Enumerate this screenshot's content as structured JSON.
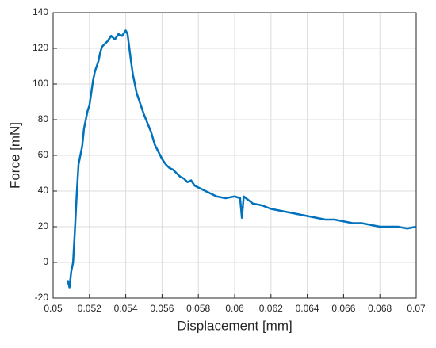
{
  "chart_data": {
    "type": "line",
    "xlabel": "Displacement [mm]",
    "ylabel": "Force [mN]",
    "x": [
      0.0508,
      0.0509,
      0.051,
      0.0511,
      0.0512,
      0.0513,
      0.0514,
      0.0515,
      0.0516,
      0.0517,
      0.0518,
      0.0519,
      0.052,
      0.0521,
      0.0522,
      0.0523,
      0.0524,
      0.0525,
      0.0526,
      0.0527,
      0.0528,
      0.0529,
      0.053,
      0.0532,
      0.0534,
      0.0536,
      0.0538,
      0.054,
      0.0541,
      0.0542,
      0.0543,
      0.0544,
      0.0546,
      0.0548,
      0.055,
      0.0552,
      0.0554,
      0.0556,
      0.0558,
      0.056,
      0.0562,
      0.0564,
      0.0566,
      0.0568,
      0.057,
      0.0572,
      0.0574,
      0.0576,
      0.0578,
      0.058,
      0.0582,
      0.0584,
      0.0586,
      0.0588,
      0.059,
      0.0595,
      0.06,
      0.0603,
      0.0604,
      0.0605,
      0.061,
      0.0615,
      0.062,
      0.0625,
      0.063,
      0.0635,
      0.064,
      0.0645,
      0.065,
      0.0655,
      0.066,
      0.0665,
      0.067,
      0.0675,
      0.068,
      0.0685,
      0.069,
      0.0695,
      0.07
    ],
    "series": [
      {
        "name": "Force",
        "color": "#0072bd",
        "values": [
          -10,
          -14,
          -5,
          0,
          18,
          38,
          55,
          60,
          65,
          75,
          80,
          85,
          88,
          95,
          102,
          107,
          110,
          113,
          118,
          121,
          122,
          123,
          124,
          127,
          125,
          128,
          127,
          130,
          128,
          120,
          112,
          105,
          95,
          89,
          83,
          78,
          73,
          66,
          62,
          58,
          55,
          53,
          52,
          50,
          48,
          47,
          45,
          46,
          43,
          42,
          41,
          40,
          39,
          38,
          37,
          36,
          37,
          36,
          25,
          37,
          33,
          32,
          30,
          29,
          28,
          27,
          26,
          25,
          24,
          24,
          23,
          22,
          22,
          21,
          20,
          20,
          20,
          19,
          20
        ]
      }
    ],
    "xlim": [
      0.05,
      0.07
    ],
    "xticks": [
      0.05,
      0.052,
      0.054,
      0.056,
      0.058,
      0.06,
      0.062,
      0.064,
      0.066,
      0.068,
      0.07
    ],
    "ylim": [
      -20,
      140
    ],
    "yticks": [
      -20,
      0,
      20,
      40,
      60,
      80,
      100,
      120,
      140
    ],
    "grid": true
  }
}
